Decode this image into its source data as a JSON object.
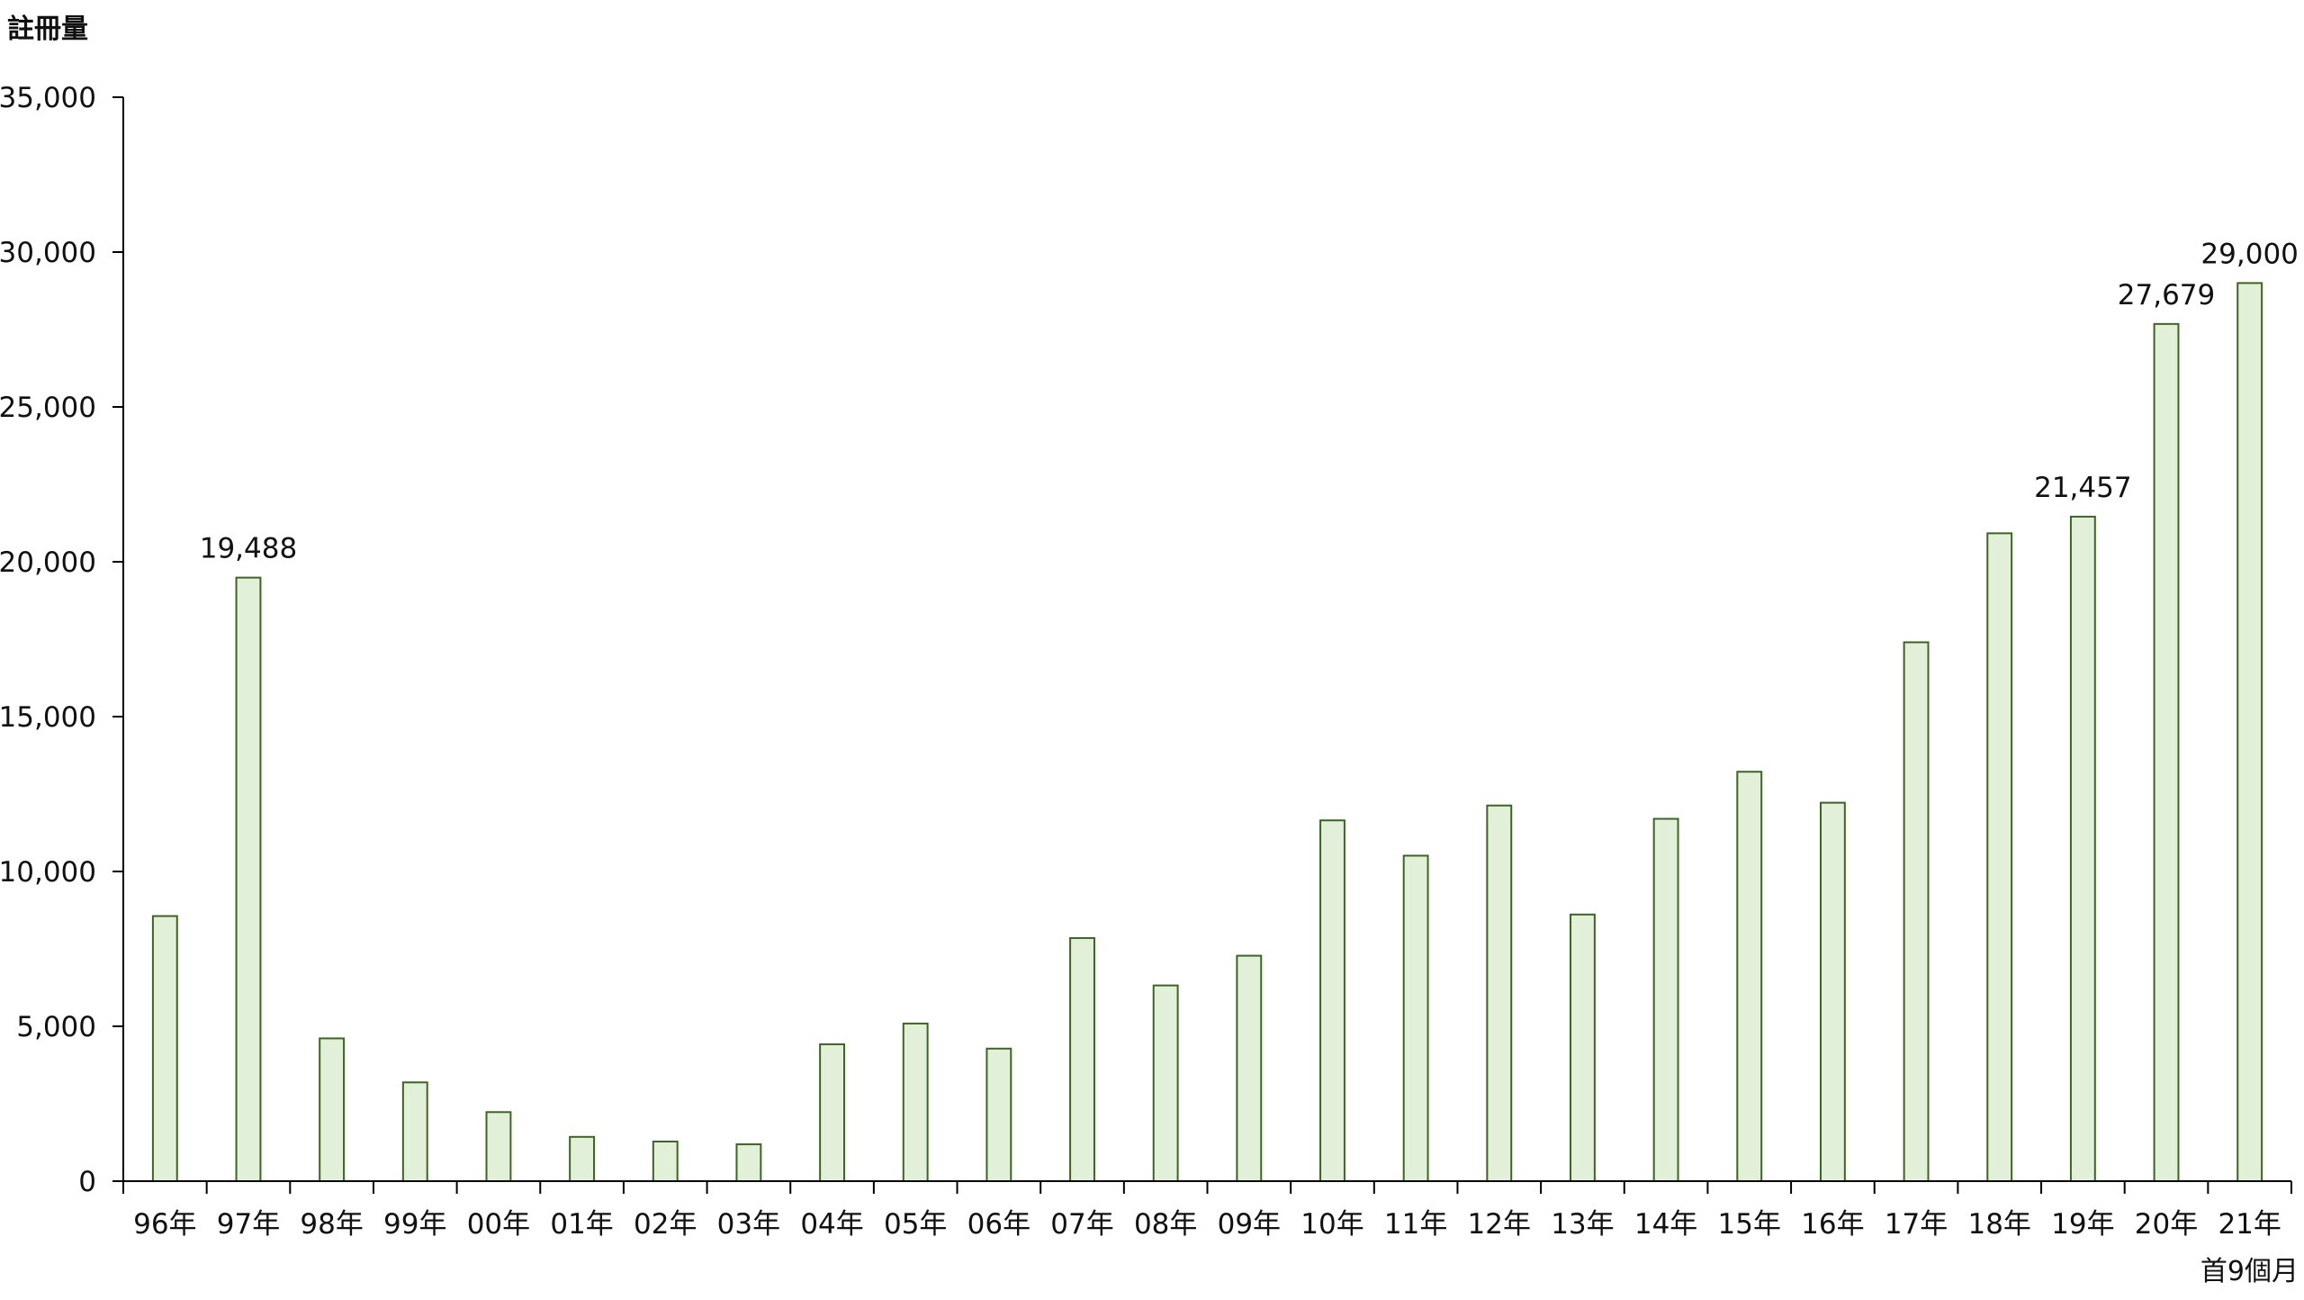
{
  "chart_data": {
    "type": "bar",
    "ylabel": "註冊量",
    "ylim": [
      0,
      35000
    ],
    "yticks": [
      0,
      5000,
      10000,
      15000,
      20000,
      25000,
      30000,
      35000
    ],
    "ytick_labels": [
      "0",
      "5,000",
      "10,000",
      "15,000",
      "20,000",
      "25,000",
      "30,000",
      "35,000"
    ],
    "categories": [
      "96年",
      "97年",
      "98年",
      "99年",
      "00年",
      "01年",
      "02年",
      "03年",
      "04年",
      "05年",
      "06年",
      "07年",
      "08年",
      "09年",
      "10年",
      "11年",
      "12年",
      "13年",
      "14年",
      "15年",
      "16年",
      "17年",
      "18年",
      "19年",
      "20年",
      "21年"
    ],
    "values": [
      8560,
      19488,
      4610,
      3190,
      2230,
      1430,
      1280,
      1190,
      4420,
      5090,
      4280,
      7850,
      6320,
      7280,
      11650,
      10510,
      12130,
      8610,
      11700,
      13220,
      12220,
      17400,
      20920,
      21457,
      27679,
      29000
    ],
    "data_labels": {
      "97年": "19,488",
      "19年": "21,457",
      "20年": "27,679",
      "21年": "29,000"
    },
    "annotation": "首9個月",
    "grid": false,
    "colors": {
      "bar_fill": "#e2efd9",
      "bar_stroke": "#3a6620",
      "axis": "#000000"
    }
  }
}
